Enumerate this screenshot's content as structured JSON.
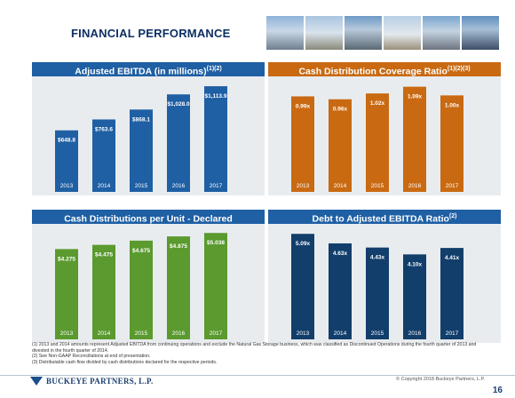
{
  "page": {
    "title": "FINANCIAL PERFORMANCE",
    "page_number": "16",
    "copyright": "© Copyright 2018 Buckeye Partners, L.P.",
    "logo_text": "BUCKEYE PARTNERS, L.P."
  },
  "colors": {
    "panel_background": "#e9ecef",
    "ebitda_blue": "#1f5fa4",
    "coverage_orange": "#c96a12",
    "distribution_green": "#5a9a2e",
    "debt_navy": "#123e6b",
    "title_navy": "#0d2f63"
  },
  "notes": [
    "(1)  2013 and 2014 amounts represent Adjusted EBITDA from continuing operations and exclude the Natural Gas Storage business, which was classified as Discontinued Operations during the fourth quarter of 2013 and",
    "       divested in the fourth quarter of 2014.",
    "(2)  See Non-GAAP Reconciliations at end of presentation.",
    "(3)  Distributable cash flow divided by cash distributions declared for the respective periods."
  ],
  "chart_data": [
    {
      "type": "bar",
      "title": "Adjusted EBITDA (in millions)",
      "title_sup": "(1)(2)",
      "categories": [
        "2013",
        "2014",
        "2015",
        "2016",
        "2017"
      ],
      "values": [
        648.8,
        763.6,
        868.1,
        1028.0,
        1113.9
      ],
      "labels": [
        "$648.8",
        "$763.6",
        "$868.1",
        "$1,028.0",
        "$1,113.9"
      ],
      "ylim": [
        0,
        1180
      ],
      "color": "#1f5fa4",
      "header_color": "#1f5fa4",
      "grid": false
    },
    {
      "type": "bar",
      "title": "Cash Distribution Coverage Ratio",
      "title_sup": "(1)(2)(3)",
      "categories": [
        "2013",
        "2014",
        "2015",
        "2016",
        "2017"
      ],
      "values": [
        0.99,
        0.96,
        1.02,
        1.09,
        1.0
      ],
      "labels": [
        "0.99x",
        "0.96x",
        "1.02x",
        "1.09x",
        "1.00x"
      ],
      "ylim": [
        0,
        1.16
      ],
      "color": "#c96a12",
      "header_color": "#c96a12",
      "grid": false
    },
    {
      "type": "bar",
      "title": "Cash Distributions per Unit - Declared",
      "title_sup": "",
      "categories": [
        "2013",
        "2014",
        "2015",
        "2016",
        "2017"
      ],
      "values": [
        4.275,
        4.475,
        4.675,
        4.875,
        5.038
      ],
      "labels": [
        "$4.275",
        "$4.475",
        "$4.675",
        "$4.875",
        "$5.038"
      ],
      "ylim": [
        0,
        5.3
      ],
      "color": "#5a9a2e",
      "header_color": "#1f5fa4",
      "grid": false
    },
    {
      "type": "bar",
      "title": "Debt to Adjusted EBITDA Ratio",
      "title_sup": "(2)",
      "categories": [
        "2013",
        "2014",
        "2015",
        "2016",
        "2017"
      ],
      "values": [
        5.09,
        4.63,
        4.43,
        4.1,
        4.41
      ],
      "labels": [
        "5.09x",
        "4.63x",
        "4.43x",
        "4.10x",
        "4.41x"
      ],
      "ylim": [
        0,
        5.4
      ],
      "color": "#123e6b",
      "header_color": "#1f5fa4",
      "grid": false
    }
  ]
}
